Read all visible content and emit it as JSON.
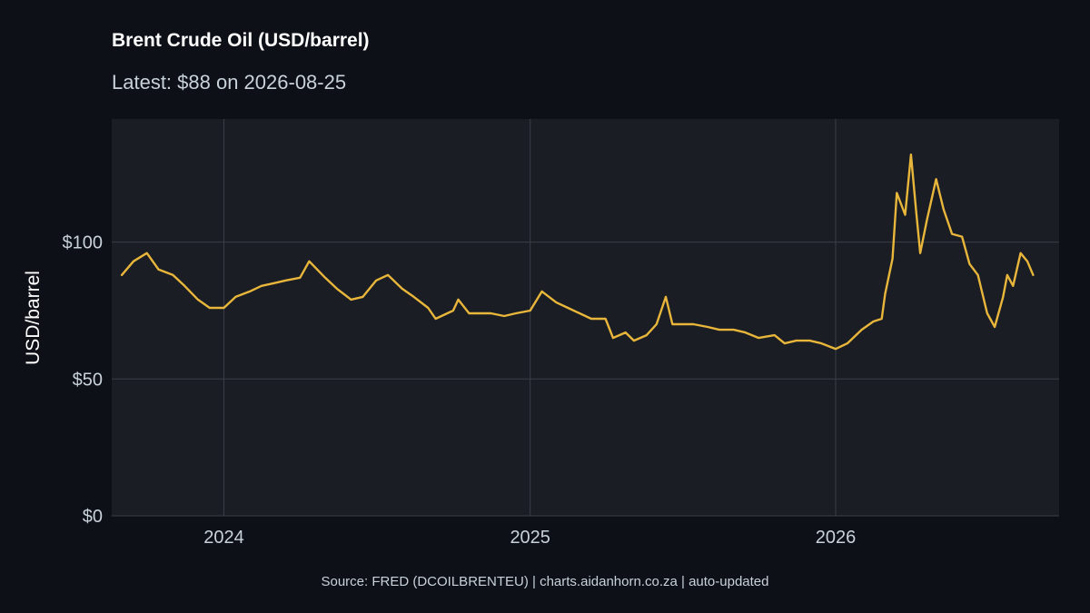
{
  "header": {
    "title": "Brent Crude Oil (USD/barrel)",
    "subtitle": "Latest: $88 on 2026-08-25"
  },
  "footer": {
    "caption": "Source: FRED (DCOILBRENTEU) | charts.aidanhorn.co.za | auto-updated"
  },
  "colors": {
    "background": "#0d1117",
    "panel": "#1a1d23",
    "grid": "#3a3f47",
    "line": "#e8b63b",
    "text": "#c9d1d9"
  },
  "chart_data": {
    "type": "line",
    "title": "Brent Crude Oil (USD/barrel)",
    "subtitle": "Latest: $88 on 2026-08-25",
    "ylabel": "USD/barrel",
    "xlabel": "",
    "xlim": [
      "2023-08-20",
      "2026-09-25"
    ],
    "ylim": [
      0,
      145
    ],
    "grid": true,
    "yticks": [
      {
        "value": 0,
        "label": "$0"
      },
      {
        "value": 50,
        "label": "$50"
      },
      {
        "value": 100,
        "label": "$100"
      }
    ],
    "xticks": [
      {
        "value": "2024-01-01",
        "label": "2024"
      },
      {
        "value": "2025-01-01",
        "label": "2025"
      },
      {
        "value": "2026-01-01",
        "label": "2026"
      }
    ],
    "series": [
      {
        "x": [
          "2023-09-01",
          "2023-09-15",
          "2023-10-01",
          "2023-10-15",
          "2023-11-01",
          "2023-11-15",
          "2023-12-01",
          "2023-12-15",
          "2024-01-01",
          "2024-01-15",
          "2024-02-01",
          "2024-02-15",
          "2024-03-01",
          "2024-03-15",
          "2024-04-01",
          "2024-04-12",
          "2024-05-01",
          "2024-05-15",
          "2024-06-01",
          "2024-06-15",
          "2024-07-01",
          "2024-07-15",
          "2024-08-01",
          "2024-08-15",
          "2024-09-01",
          "2024-09-10",
          "2024-10-01",
          "2024-10-07",
          "2024-10-20",
          "2024-11-01",
          "2024-11-15",
          "2024-12-01",
          "2024-12-15",
          "2025-01-01",
          "2025-01-15",
          "2025-02-01",
          "2025-02-15",
          "2025-03-01",
          "2025-03-15",
          "2025-04-01",
          "2025-04-10",
          "2025-04-25",
          "2025-05-05",
          "2025-05-20",
          "2025-06-01",
          "2025-06-12",
          "2025-06-20",
          "2025-07-01",
          "2025-07-15",
          "2025-08-01",
          "2025-08-15",
          "2025-09-01",
          "2025-09-15",
          "2025-10-01",
          "2025-10-20",
          "2025-11-01",
          "2025-11-15",
          "2025-12-01",
          "2025-12-15",
          "2026-01-01",
          "2026-01-15",
          "2026-02-01",
          "2026-02-15",
          "2026-02-25",
          "2026-03-01",
          "2026-03-10",
          "2026-03-15",
          "2026-03-25",
          "2026-04-01",
          "2026-04-07",
          "2026-04-12",
          "2026-04-20",
          "2026-05-01",
          "2026-05-10",
          "2026-05-20",
          "2026-06-01",
          "2026-06-10",
          "2026-06-20",
          "2026-07-01",
          "2026-07-10",
          "2026-07-20",
          "2026-07-25",
          "2026-08-01",
          "2026-08-10",
          "2026-08-18",
          "2026-08-25"
        ],
        "values": [
          88,
          93,
          96,
          90,
          88,
          84,
          79,
          76,
          76,
          80,
          82,
          84,
          85,
          86,
          87,
          93,
          87,
          83,
          79,
          80,
          86,
          88,
          83,
          80,
          76,
          72,
          75,
          79,
          74,
          74,
          74,
          73,
          74,
          75,
          82,
          78,
          76,
          74,
          72,
          72,
          65,
          67,
          64,
          66,
          70,
          80,
          70,
          70,
          70,
          69,
          68,
          68,
          67,
          65,
          66,
          63,
          64,
          64,
          63,
          61,
          63,
          68,
          71,
          72,
          81,
          94,
          118,
          110,
          132,
          112,
          96,
          108,
          123,
          112,
          103,
          102,
          92,
          88,
          74,
          69,
          80,
          88,
          84,
          96,
          93,
          88
        ]
      }
    ]
  }
}
